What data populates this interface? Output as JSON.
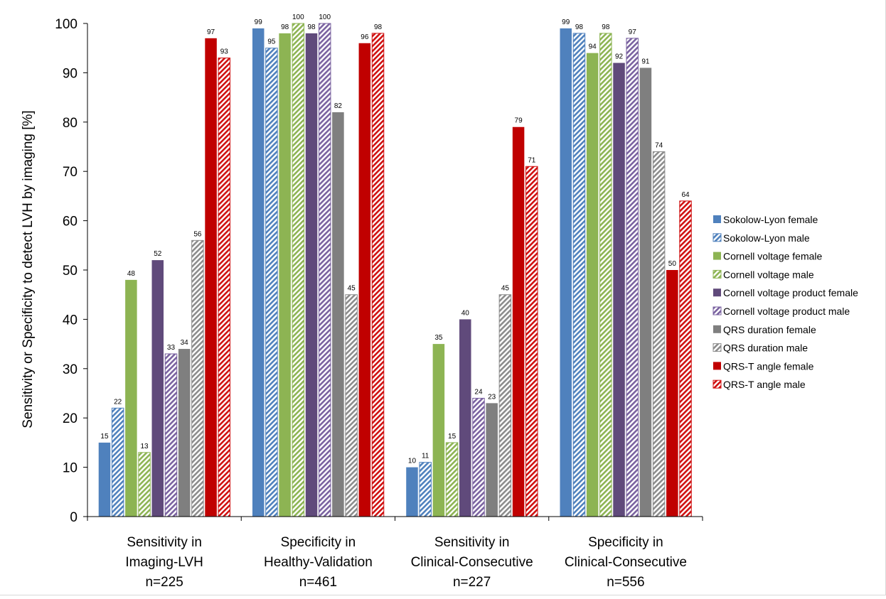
{
  "chart_data": {
    "type": "bar",
    "title": "",
    "xlabel": "",
    "ylabel": "Sensitivity or Specificity to detect LVH by imaging [%]",
    "ylim": [
      0,
      100
    ],
    "yticks": [
      0,
      10,
      20,
      30,
      40,
      50,
      60,
      70,
      80,
      90,
      100
    ],
    "grid": false,
    "legend_position": "right",
    "categories": [
      [
        "Sensitivity in",
        "Imaging-LVH",
        "n=225"
      ],
      [
        "Specificity in",
        "Healthy-Validation",
        "n=461"
      ],
      [
        "Sensitivity in",
        "Clinical-Consecutive",
        "n=227"
      ],
      [
        "Specificity in",
        "Clinical-Consecutive",
        "n=556"
      ]
    ],
    "series": [
      {
        "name": "Sokolow-Lyon female",
        "color": "#4f81bd",
        "pattern": "solid",
        "values": [
          15,
          99,
          10,
          99
        ]
      },
      {
        "name": "Sokolow-Lyon male",
        "color": "#4f81bd",
        "pattern": "hatched",
        "values": [
          22,
          95,
          11,
          98
        ]
      },
      {
        "name": "Cornell voltage female",
        "color": "#8db453",
        "pattern": "solid",
        "values": [
          48,
          98,
          35,
          94
        ]
      },
      {
        "name": "Cornell voltage male",
        "color": "#8db453",
        "pattern": "hatched",
        "values": [
          13,
          100,
          15,
          98
        ]
      },
      {
        "name": "Cornell voltage product female",
        "color": "#604a7b",
        "pattern": "solid",
        "values": [
          52,
          98,
          40,
          92
        ]
      },
      {
        "name": "Cornell voltage product male",
        "color": "#7a62a0",
        "pattern": "hatched",
        "values": [
          33,
          100,
          24,
          97
        ]
      },
      {
        "name": "QRS duration female",
        "color": "#7f7f7f",
        "pattern": "solid",
        "values": [
          34,
          82,
          23,
          91
        ]
      },
      {
        "name": "QRS duration male",
        "color": "#8c8c8c",
        "pattern": "hatched",
        "values": [
          56,
          45,
          45,
          74
        ]
      },
      {
        "name": "QRS-T angle female",
        "color": "#c00000",
        "pattern": "solid",
        "values": [
          97,
          96,
          79,
          50
        ]
      },
      {
        "name": "QRS-T angle male",
        "color": "#d01010",
        "pattern": "hatched",
        "values": [
          93,
          98,
          71,
          64
        ]
      }
    ]
  }
}
